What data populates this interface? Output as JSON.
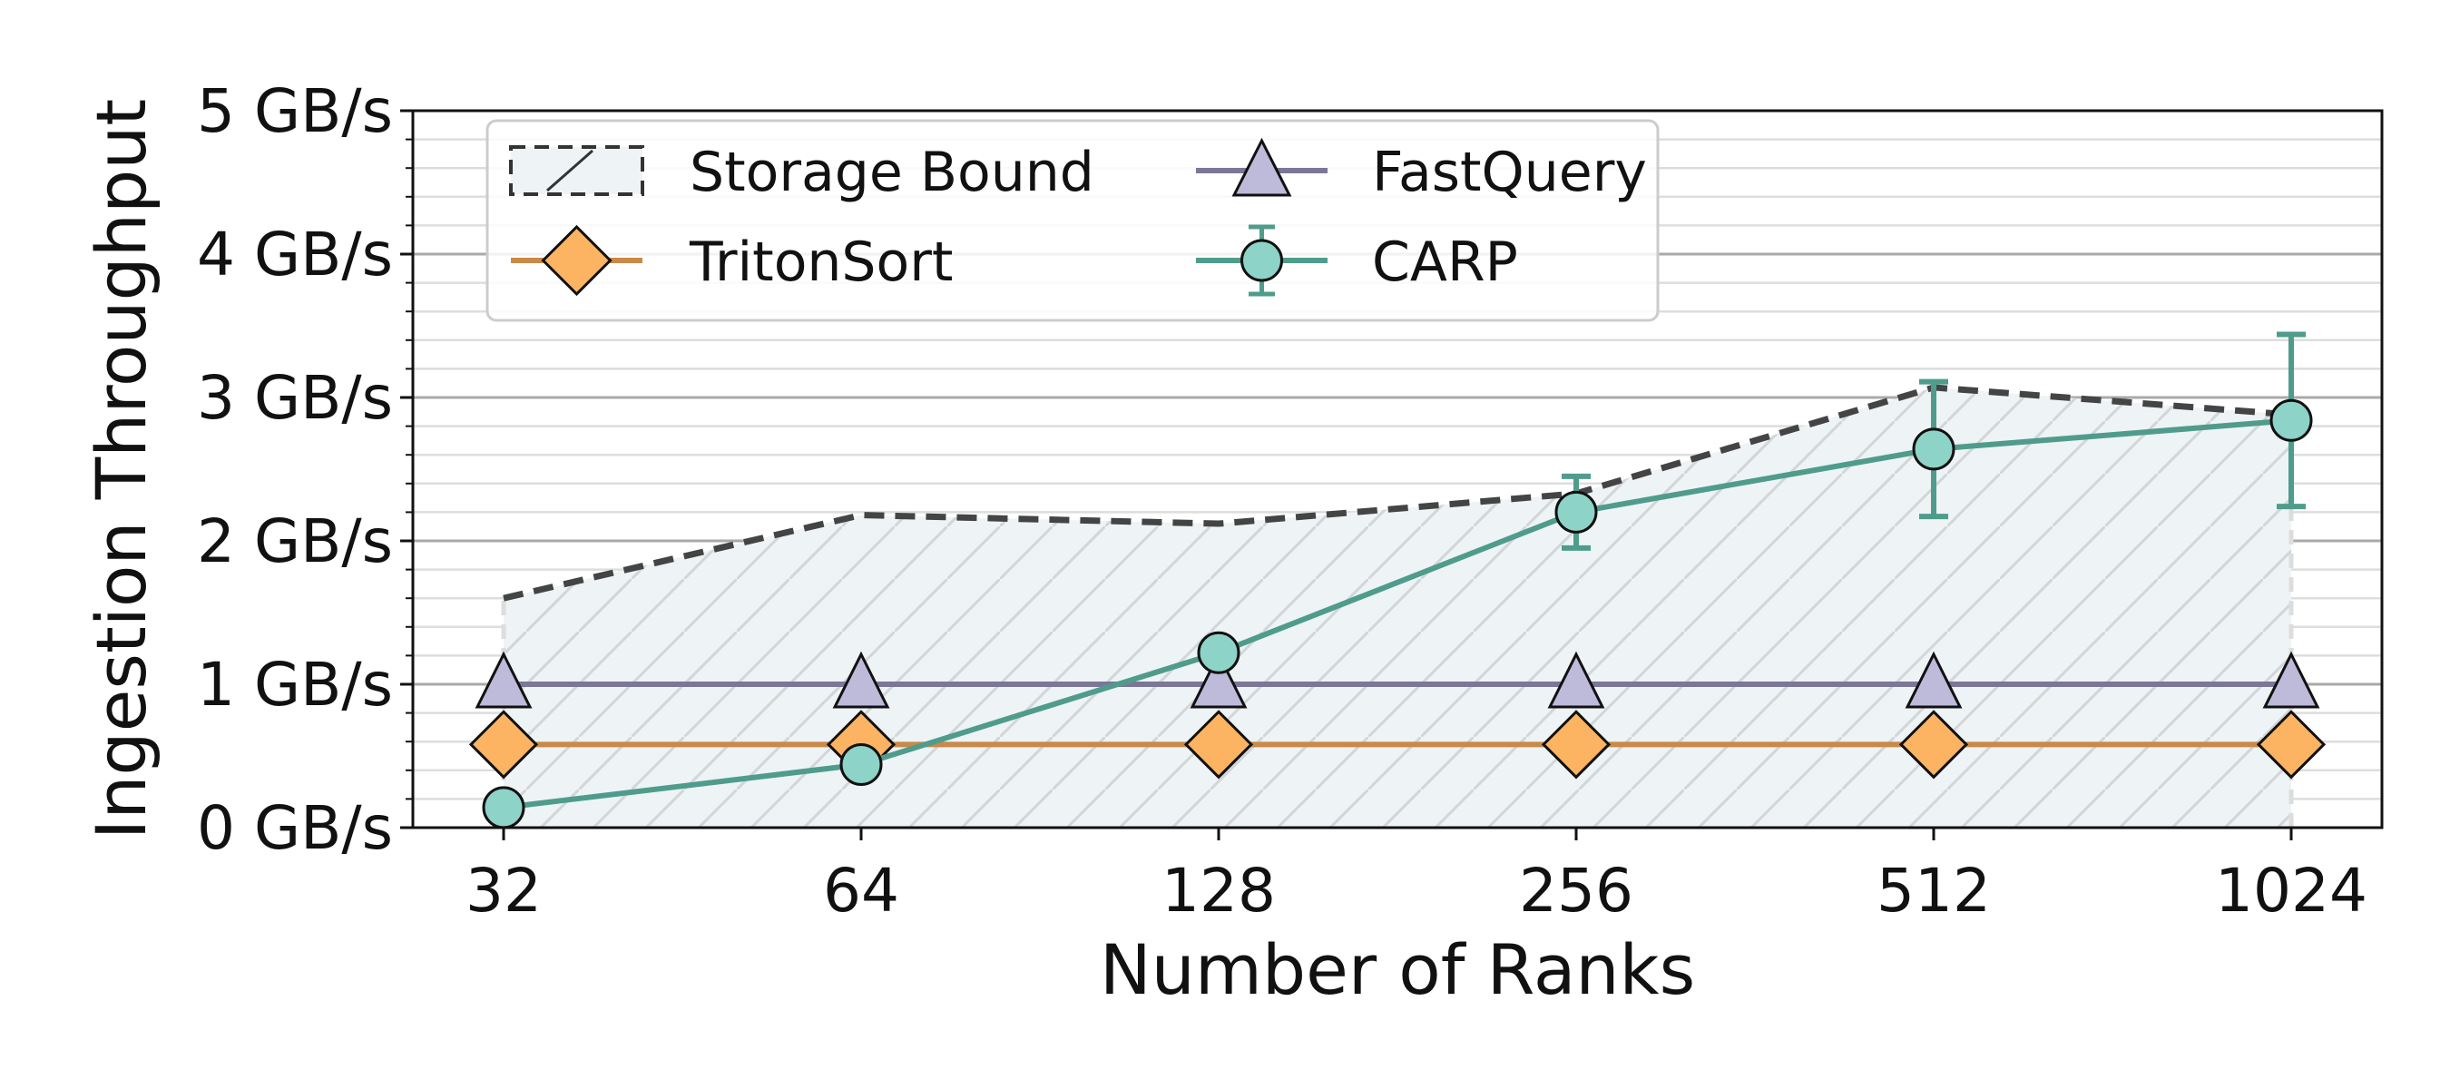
{
  "chart_data": {
    "type": "line",
    "title": "",
    "xlabel": "Number of Ranks",
    "ylabel": "Ingestion Throughput",
    "categories": [
      "32",
      "64",
      "128",
      "256",
      "512",
      "1024"
    ],
    "ylim": [
      0,
      5
    ],
    "yticks": [
      {
        "value": 0,
        "label": "0 GB/s"
      },
      {
        "value": 1,
        "label": "1 GB/s"
      },
      {
        "value": 2,
        "label": "2 GB/s"
      },
      {
        "value": 3,
        "label": "3 GB/s"
      },
      {
        "value": 4,
        "label": "4 GB/s"
      },
      {
        "value": 5,
        "label": "5 GB/s"
      }
    ],
    "grid": true,
    "legend_position": "top-left",
    "storage_bound": {
      "name": "Storage Bound",
      "values": [
        1.6,
        2.18,
        2.12,
        2.33,
        3.07,
        2.88
      ],
      "color": "#444444",
      "fill": "#eef3f6"
    },
    "series": [
      {
        "name": "TritonSort",
        "values": [
          0.58,
          0.58,
          0.58,
          0.58,
          0.58,
          0.58
        ],
        "color": "#c98a48",
        "marker": "diamond",
        "marker_fill": "#fdb462"
      },
      {
        "name": "FastQuery",
        "values": [
          1.0,
          1.0,
          1.0,
          1.0,
          1.0,
          1.0
        ],
        "color": "#7b7799",
        "marker": "triangle",
        "marker_fill": "#bebada"
      },
      {
        "name": "CARP",
        "values": [
          0.14,
          0.44,
          1.22,
          2.2,
          2.64,
          2.84
        ],
        "error": [
          0.0,
          0.0,
          0.0,
          0.25,
          0.47,
          0.6
        ],
        "color": "#4f9c8c",
        "marker": "circle",
        "marker_fill": "#8dd3c7"
      }
    ]
  }
}
